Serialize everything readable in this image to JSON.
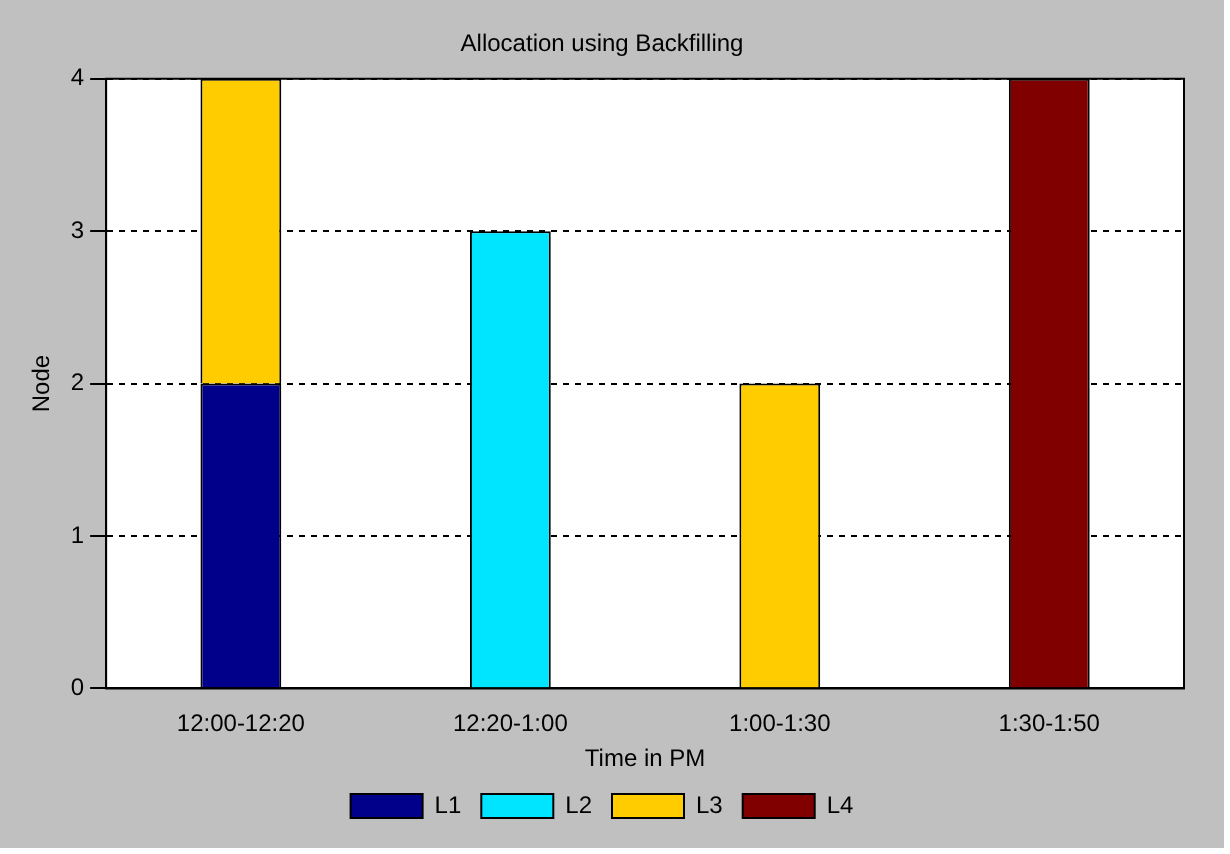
{
  "chart_data": {
    "type": "bar",
    "title": "Allocation using Backfilling",
    "xlabel": "Time in PM",
    "ylabel": "Node",
    "categories": [
      "12:00-12:20",
      "12:20-1:00",
      "1:00-1:30",
      "1:30-1:50"
    ],
    "series": [
      {
        "name": "L1",
        "color": "#00008b",
        "values": [
          2,
          null,
          null,
          null
        ]
      },
      {
        "name": "L2",
        "color": "#00e5ff",
        "values": [
          null,
          3,
          null,
          null
        ]
      },
      {
        "name": "L3",
        "color": "#ffcc00",
        "values": [
          2,
          null,
          2,
          null
        ]
      },
      {
        "name": "L4",
        "color": "#800000",
        "values": [
          null,
          null,
          null,
          4
        ]
      }
    ],
    "stacked": true,
    "ylim": [
      0,
      4
    ],
    "yticks": [
      0,
      1,
      2,
      3,
      4
    ],
    "grid": "y",
    "legend": "bottom"
  }
}
